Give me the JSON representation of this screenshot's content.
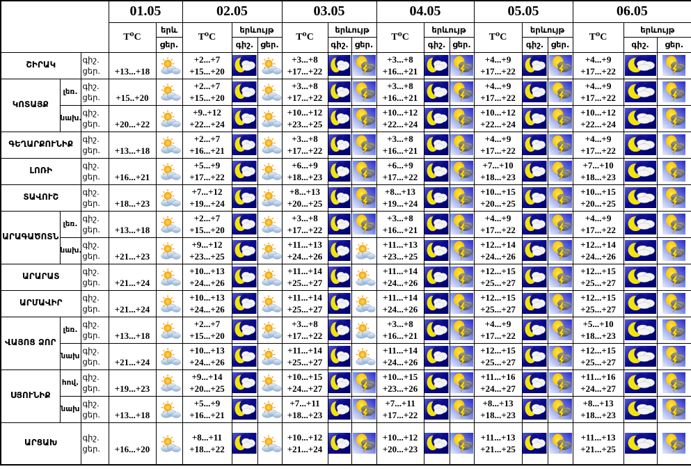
{
  "header": {
    "dates": [
      "01.05",
      "02.05",
      "03.05",
      "04.05",
      "05.05",
      "06.05"
    ],
    "temp_label": "T⁰C",
    "phenomenon_label": "երևույթ",
    "phenomenon_label_short": "երև",
    "night_label": "գիշ.",
    "day_label": "ցեր."
  },
  "row_label": {
    "night": "գիշ.",
    "day": "ցեր."
  },
  "icon_colors": {
    "night_bg": "#0b0b8e",
    "moon": "#f2e30c",
    "sun": "#f5a623",
    "storm_sun": "#ffd200",
    "lightning": "#ffe400",
    "day_cloud": "#8fb0d4",
    "storm_cloud": "#6a6a6a",
    "border": "#000000"
  },
  "regions": [
    {
      "name": "ՇԻՐԱԿ",
      "rows": [
        {
          "sub": "",
          "cells": [
            {
              "day": "+13...+18",
              "day_icon": "sun-cloud"
            },
            {
              "night": "+2...+7",
              "day": "+15...+20",
              "night_icon": "moon-cloud",
              "day_icon": "sun-cloud"
            },
            {
              "night": "+3...+8",
              "day": "+17...+22",
              "night_icon": "moon-cloud",
              "day_icon": "sun-storm"
            },
            {
              "night": "+3...+8",
              "day": "+16...+21",
              "night_icon": "moon-cloud",
              "day_icon": "sun-storm"
            },
            {
              "night": "+4...+9",
              "day": "+17...+22",
              "night_icon": "moon-cloud",
              "day_icon": "sun-storm"
            },
            {
              "night": "+4...+9",
              "day": "+17...+22",
              "night_icon": "moon-cloud",
              "day_icon": "sun-storm"
            }
          ]
        }
      ]
    },
    {
      "name": "ԿՈՏԱՅՔ",
      "rows": [
        {
          "sub": "լեռ.",
          "cells": [
            {
              "day": "+15..+20",
              "day_icon": "sun-cloud"
            },
            {
              "night": "+2...+7",
              "day": "+15...+20",
              "night_icon": "moon-cloud",
              "day_icon": "sun-cloud"
            },
            {
              "night": "+3...+8",
              "day": "+17...+22",
              "night_icon": "moon-cloud",
              "day_icon": "sun-storm"
            },
            {
              "night": "+3...+8",
              "day": "+16...+21",
              "night_icon": "moon-cloud",
              "day_icon": "sun-storm"
            },
            {
              "night": "+4...+9",
              "day": "+17...+22",
              "night_icon": "moon-cloud",
              "day_icon": "sun-storm"
            },
            {
              "night": "+4...+9",
              "day": "+17...+22",
              "night_icon": "moon-cloud",
              "day_icon": "sun-storm"
            }
          ]
        },
        {
          "sub": "նախ.",
          "cells": [
            {
              "day": "+20...+22",
              "day_icon": "sun-cloud"
            },
            {
              "night": "+9..+12",
              "day": "+22...+24",
              "night_icon": "moon-cloud",
              "day_icon": "sun-cloud"
            },
            {
              "night": "+10...+12",
              "day": "+23...+25",
              "night_icon": "moon-cloud",
              "day_icon": "sun-storm"
            },
            {
              "night": "+10...+12",
              "day": "+22...+24",
              "night_icon": "moon-cloud",
              "day_icon": "sun-storm"
            },
            {
              "night": "+10...+12",
              "day": "+22...+24",
              "night_icon": "moon-cloud",
              "day_icon": "sun-storm"
            },
            {
              "night": "+10...+12",
              "day": "+22...+24",
              "night_icon": "moon-cloud",
              "day_icon": "sun-storm"
            }
          ]
        }
      ]
    },
    {
      "name": "ԳԵՂԱՐՔՈՒՆԻՔ",
      "rows": [
        {
          "sub": "",
          "cells": [
            {
              "day": "+13...+18",
              "day_icon": "sun-cloud"
            },
            {
              "night": "+2...+7",
              "day": "+16...+21",
              "night_icon": "moon-cloud",
              "day_icon": "sun-cloud"
            },
            {
              "night": "+3...+8",
              "day": "+17...+22",
              "night_icon": "moon-cloud",
              "day_icon": "sun-storm"
            },
            {
              "night": "+3...+8",
              "day": "+16...+21",
              "night_icon": "moon-cloud",
              "day_icon": "sun-storm"
            },
            {
              "night": "+4...+9",
              "day": "+17...+22",
              "night_icon": "moon-cloud",
              "day_icon": "sun-storm"
            },
            {
              "night": "+4...+9",
              "day": "+17...+22",
              "night_icon": "moon-cloud",
              "day_icon": "sun-storm"
            }
          ]
        }
      ]
    },
    {
      "name": "ԼՈՌԻ",
      "rows": [
        {
          "sub": "",
          "cells": [
            {
              "day": "+16...+21",
              "day_icon": "sun-cloud"
            },
            {
              "night": "+5...+9",
              "day": "+17...+22",
              "night_icon": "moon-cloud",
              "day_icon": "sun-cloud"
            },
            {
              "night": "+6...+9",
              "day": "+18...+23",
              "night_icon": "moon-cloud",
              "day_icon": "sun-storm"
            },
            {
              "night": "+6...+9",
              "day": "+17...+22",
              "night_icon": "moon-cloud",
              "day_icon": "sun-storm"
            },
            {
              "night": "+7...+10",
              "day": "+18...+23",
              "night_icon": "moon-cloud",
              "day_icon": "sun-storm"
            },
            {
              "night": "+7...+10",
              "day": "+18...+23",
              "night_icon": "moon-cloud",
              "day_icon": "sun-storm"
            }
          ]
        }
      ]
    },
    {
      "name": "ՏԱՎՈՒՇ",
      "rows": [
        {
          "sub": "",
          "cells": [
            {
              "day": "+18...+23",
              "day_icon": "sun-cloud"
            },
            {
              "night": "+7...+12",
              "day": "+19...+24",
              "night_icon": "moon-cloud",
              "day_icon": "sun-cloud"
            },
            {
              "night": "+8...+13",
              "day": "+20...+25",
              "night_icon": "moon-cloud",
              "day_icon": "sun-storm"
            },
            {
              "night": "+8...+13",
              "day": "+19...+24",
              "night_icon": "moon-cloud",
              "day_icon": "sun-storm"
            },
            {
              "night": "+10...+15",
              "day": "+20...+25",
              "night_icon": "moon-cloud",
              "day_icon": "sun-storm"
            },
            {
              "night": "+10...+15",
              "day": "+20...+25",
              "night_icon": "moon-cloud",
              "day_icon": "sun-storm"
            }
          ]
        }
      ]
    },
    {
      "name": "ԱՐԱԳԱԾՈՏՆ",
      "rows": [
        {
          "sub": "լեռ.",
          "cells": [
            {
              "day": "+13...+18",
              "day_icon": "sun-cloud"
            },
            {
              "night": "+2...+7",
              "day": "+15...+20",
              "night_icon": "moon-cloud",
              "day_icon": "sun-cloud"
            },
            {
              "night": "+3...+8",
              "day": "+17...+22",
              "night_icon": "moon-cloud",
              "day_icon": "sun-storm"
            },
            {
              "night": "+3...+8",
              "day": "+16...+21",
              "night_icon": "moon-cloud",
              "day_icon": "sun-storm"
            },
            {
              "night": "+4...+9",
              "day": "+17...+22",
              "night_icon": "moon-cloud",
              "day_icon": "sun-storm"
            },
            {
              "night": "+4...+9",
              "day": "+17...+22",
              "night_icon": "moon-cloud",
              "day_icon": "sun-storm"
            }
          ]
        },
        {
          "sub": "նախ.",
          "cells": [
            {
              "day": "+21...+23",
              "day_icon": "sun-cloud"
            },
            {
              "night": "+9...+12",
              "day": "+23...+25",
              "night_icon": "moon-cloud",
              "day_icon": "sun-cloud"
            },
            {
              "night": "+11...+13",
              "day": "+24...+26",
              "night_icon": "moon-cloud",
              "day_icon": "sun-cloud"
            },
            {
              "night": "+11...+13",
              "day": "+23...+25",
              "night_icon": "moon-cloud",
              "day_icon": "sun-storm"
            },
            {
              "night": "+12...+14",
              "day": "+24...+26",
              "night_icon": "moon-cloud",
              "day_icon": "sun-storm"
            },
            {
              "night": "+12...+14",
              "day": "+24...+26",
              "night_icon": "moon-cloud",
              "day_icon": "sun-storm"
            }
          ]
        }
      ]
    },
    {
      "name": "ԱՐԱՐԱՏ",
      "rows": [
        {
          "sub": "",
          "cells": [
            {
              "day": "+21...+24",
              "day_icon": "sun-cloud"
            },
            {
              "night": "+10...+13",
              "day": "+24...+26",
              "night_icon": "moon-cloud",
              "day_icon": "sun-cloud"
            },
            {
              "night": "+11...+14",
              "day": "+25...+27",
              "night_icon": "moon-cloud",
              "day_icon": "sun-cloud"
            },
            {
              "night": "+11...+14",
              "day": "+24...+26",
              "night_icon": "moon-cloud",
              "day_icon": "sun-storm"
            },
            {
              "night": "+12...+15",
              "day": "+25...+27",
              "night_icon": "moon-cloud",
              "day_icon": "sun-storm"
            },
            {
              "night": "+12...+15",
              "day": "+25...+27",
              "night_icon": "moon-cloud",
              "day_icon": "sun-storm"
            }
          ]
        }
      ]
    },
    {
      "name": "ԱՐՄԱՎԻՐ",
      "rows": [
        {
          "sub": "",
          "cells": [
            {
              "day": "+21...+24",
              "day_icon": "sun-cloud"
            },
            {
              "night": "+10...+13",
              "day": "+24...+26",
              "night_icon": "moon-cloud",
              "day_icon": "sun-cloud"
            },
            {
              "night": "+11...+14",
              "day": "+25...+27",
              "night_icon": "moon-cloud",
              "day_icon": "sun-cloud"
            },
            {
              "night": "+11...+14",
              "day": "+24...+26",
              "night_icon": "moon-cloud",
              "day_icon": "sun-storm"
            },
            {
              "night": "+12...+15",
              "day": "+25...+27",
              "night_icon": "moon-cloud",
              "day_icon": "sun-storm"
            },
            {
              "night": "+12...+15",
              "day": "+25...+27",
              "night_icon": "moon-cloud",
              "day_icon": "sun-storm"
            }
          ]
        }
      ]
    },
    {
      "name": "ՎԱՅՈՑ ՁՈՐ",
      "rows": [
        {
          "sub": "լեռ.",
          "cells": [
            {
              "day": "+13...+18",
              "day_icon": "sun-cloud"
            },
            {
              "night": "+2...+7",
              "day": "+15...+20",
              "night_icon": "moon-cloud",
              "day_icon": "sun-cloud"
            },
            {
              "night": "+3...+8",
              "day": "+17...+22",
              "night_icon": "moon-cloud",
              "day_icon": "sun-cloud"
            },
            {
              "night": "+3...+8",
              "day": "+16...+21",
              "night_icon": "moon-cloud",
              "day_icon": "sun-storm"
            },
            {
              "night": "+4...+9",
              "day": "+17...+22",
              "night_icon": "moon-cloud",
              "day_icon": "sun-storm"
            },
            {
              "night": "+5...+10",
              "day": "+18...+23",
              "night_icon": "moon-cloud",
              "day_icon": "sun-storm"
            }
          ]
        },
        {
          "sub": "նախ",
          "cells": [
            {
              "day": "+21...+24",
              "day_icon": "sun-cloud"
            },
            {
              "night": "+10...+13",
              "day": "+24...+26",
              "night_icon": "moon-cloud",
              "day_icon": "sun-cloud"
            },
            {
              "night": "+11...+14",
              "day": "+25...+27",
              "night_icon": "moon-cloud",
              "day_icon": "sun-cloud"
            },
            {
              "night": "+11...+14",
              "day": "+24...+26",
              "night_icon": "moon-cloud",
              "day_icon": "sun-storm"
            },
            {
              "night": "+12...+15",
              "day": "+25...+27",
              "night_icon": "moon-cloud",
              "day_icon": "sun-storm"
            },
            {
              "night": "+12...+15",
              "day": "+25...+27",
              "night_icon": "moon-cloud",
              "day_icon": "sun-storm"
            }
          ]
        }
      ]
    },
    {
      "name": "ՍՅՈՒՆԻՔ",
      "rows": [
        {
          "sub": "հով.",
          "cells": [
            {
              "day": "+19...+23",
              "day_icon": "sun-cloud"
            },
            {
              "night": "+9...+14",
              "day": "+20...+25",
              "night_icon": "moon-cloud",
              "day_icon": "sun-cloud"
            },
            {
              "night": "+10...+15",
              "day": "+24...+27",
              "night_icon": "moon-cloud",
              "day_icon": "sun-storm"
            },
            {
              "night": "+10...+15",
              "day": "+23...+26",
              "night_icon": "moon-cloud",
              "day_icon": "sun-storm"
            },
            {
              "night": "+11...+16",
              "day": "+24...+27",
              "night_icon": "moon-cloud",
              "day_icon": "sun-storm"
            },
            {
              "night": "+11...+16",
              "day": "+24...+27",
              "night_icon": "moon-cloud",
              "day_icon": "sun-storm"
            }
          ]
        },
        {
          "sub": "նախ",
          "cells": [
            {
              "day": "+13...+18",
              "day_icon": "sun-cloud"
            },
            {
              "night": "+5...+9",
              "day": "+16...+21",
              "night_icon": "moon-cloud",
              "day_icon": "sun-cloud"
            },
            {
              "night": "+7...+11",
              "day": "+18...+23",
              "night_icon": "moon-cloud",
              "day_icon": "sun-storm"
            },
            {
              "night": "+7...+11",
              "day": "+17...+22",
              "night_icon": "moon-cloud",
              "day_icon": "sun-storm"
            },
            {
              "night": "+8...+13",
              "day": "+18...+23",
              "night_icon": "moon-cloud",
              "day_icon": "sun-storm"
            },
            {
              "night": "+8...+13",
              "day": "+18...+23",
              "night_icon": "moon-cloud",
              "day_icon": "sun-storm"
            }
          ]
        }
      ]
    },
    {
      "name": "ԱՐՑԱԽ",
      "rows": [
        {
          "sub": "",
          "cells": [
            {
              "day": "+16...+20",
              "day_icon": "sun-cloud"
            },
            {
              "night": "+8...+11",
              "day": "+18...+22",
              "night_icon": "moon-cloud",
              "day_icon": "sun-cloud"
            },
            {
              "night": "+10...+12",
              "day": "+21...+24",
              "night_icon": "moon-cloud",
              "day_icon": "sun-storm"
            },
            {
              "night": "+10...+12",
              "day": "+20...+23",
              "night_icon": "moon-cloud",
              "day_icon": "sun-storm"
            },
            {
              "night": "+11...+13",
              "day": "+21...+25",
              "night_icon": "moon-cloud",
              "day_icon": "sun-storm"
            },
            {
              "night": "+11...+13",
              "day": "+21...+25",
              "night_icon": "moon-cloud",
              "day_icon": "sun-storm"
            }
          ]
        }
      ]
    }
  ]
}
